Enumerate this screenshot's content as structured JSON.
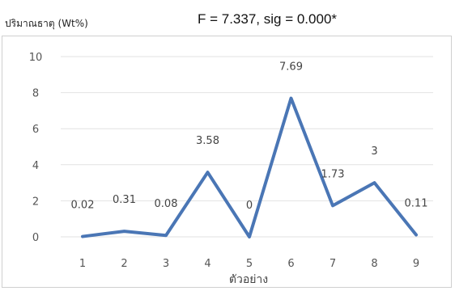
{
  "chart_data": {
    "type": "line",
    "ylabel": "ปริมาณธาตุ (Wt%)",
    "annotation": "F = 7.337, sig = 0.000*",
    "xlabel": "ตัวอย่าง",
    "categories": [
      "1",
      "2",
      "3",
      "4",
      "5",
      "6",
      "7",
      "8",
      "9"
    ],
    "values": [
      0.02,
      0.31,
      0.08,
      3.58,
      0,
      7.69,
      1.73,
      3,
      0.11
    ],
    "data_labels": [
      "0.02",
      "0.31",
      "0.08",
      "3.58",
      "0",
      "7.69",
      "1.73",
      "3",
      "0.11"
    ],
    "yticks": [
      "0",
      "2",
      "4",
      "6",
      "8",
      "10"
    ],
    "ylim": [
      0,
      10
    ],
    "grid": true,
    "legend": "none",
    "line_color": "#4a76b5"
  }
}
